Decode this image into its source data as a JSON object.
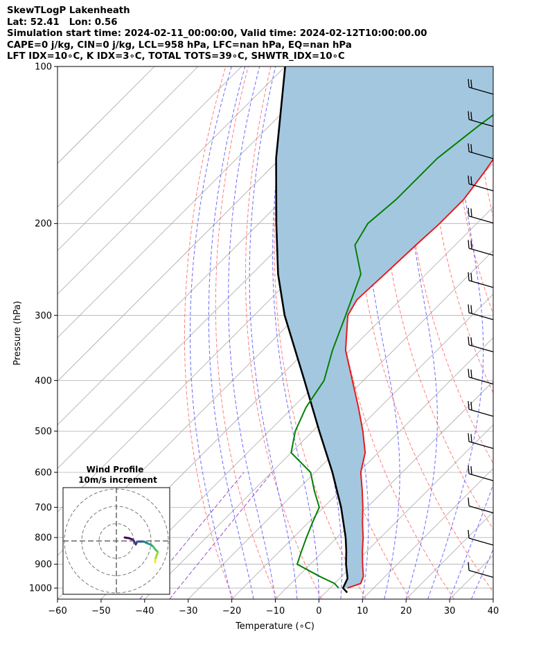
{
  "header": {
    "line1": "SkewTLogP Lakenheath",
    "line2": "Lat: 52.41   Lon: 0.56",
    "line3": "Simulation start time: 2024-02-11_00:00:00, Valid time: 2024-02-12T10:00:00.00",
    "line4": "CAPE=0 j/kg, CIN=0 j/kg, LCL=958 hPa, LFC=nan hPa, EQ=nan hPa",
    "line5": "LFT IDX=10∘C, K IDX=3∘C, TOTAL TOTS=39∘C, SHWTR_IDX=10∘C"
  },
  "colors": {
    "temperature": "#e41a1c",
    "dewpoint": "#008000",
    "parcel": "#000000",
    "cin_fill": "#a4c7e0",
    "dry_adiabat": "#ff6e6e",
    "moist_adiabat": "#5a5aff",
    "mixing_ratio": "#9a4ec7",
    "isotherm": "#a8a8a8",
    "isobar": "#b0b0b0"
  },
  "chart_data": {
    "type": "skewt",
    "xlabel": "Temperature (∘C)",
    "ylabel": "Pressure (hPa)",
    "xlim": [
      -60,
      40
    ],
    "ylim": [
      1050,
      100
    ],
    "log_y": true,
    "x_ticks": [
      "−60",
      "−50",
      "−40",
      "−30",
      "−20",
      "−10",
      "0",
      "10",
      "20",
      "30",
      "40"
    ],
    "y_ticks": [
      "100",
      "200",
      "300",
      "400",
      "500",
      "600",
      "700",
      "800",
      "900",
      "1000"
    ],
    "temperature": {
      "p": [
        1000,
        980,
        950,
        900,
        850,
        800,
        750,
        700,
        650,
        600,
        550,
        500,
        450,
        400,
        350,
        300,
        280,
        250,
        220,
        200,
        180,
        160,
        150,
        130,
        110,
        100
      ],
      "t": [
        4,
        6,
        5,
        2,
        -1,
        -4,
        -7.5,
        -11,
        -15,
        -19.5,
        -23,
        -28.5,
        -35,
        -42.5,
        -51,
        -58.5,
        -60,
        -59.5,
        -59,
        -58.5,
        -58.5,
        -60,
        -61,
        -58,
        -58,
        -58
      ]
    },
    "dewpoint": {
      "p": [
        1000,
        980,
        950,
        900,
        850,
        800,
        750,
        700,
        650,
        600,
        550,
        500,
        450,
        400,
        350,
        300,
        250,
        220,
        200,
        180,
        150,
        130,
        110,
        100
      ],
      "td": [
        2,
        0,
        -5,
        -13,
        -15,
        -17,
        -19,
        -21,
        -26,
        -31,
        -40,
        -44,
        -47,
        -49,
        -54,
        -59,
        -65,
        -73,
        -75,
        -74,
        -74,
        -72,
        -69,
        -67
      ]
    },
    "parcel": {
      "p": [
        1020,
        1000,
        958,
        900,
        850,
        800,
        700,
        600,
        500,
        400,
        300,
        250,
        200,
        150,
        100
      ],
      "t": [
        5,
        3,
        1.8,
        -1.8,
        -4.7,
        -8,
        -16,
        -26,
        -38.5,
        -53.5,
        -73,
        -84,
        -96,
        -111,
        -130
      ]
    },
    "wind_profile": {
      "title": "Wind Profile",
      "subtitle": "10m/s increment"
    }
  }
}
